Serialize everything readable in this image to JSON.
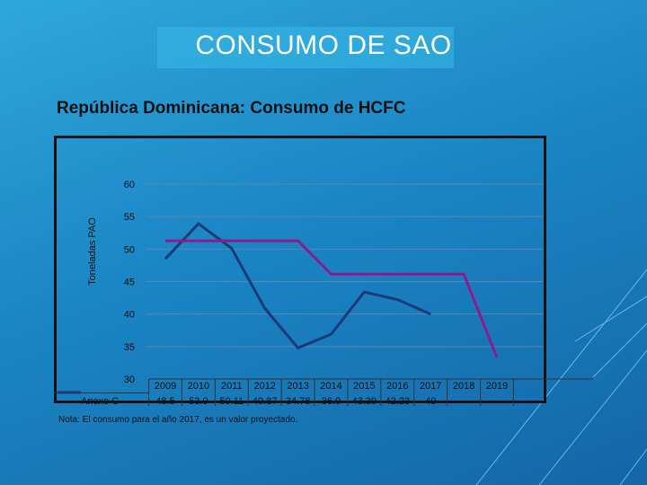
{
  "slide": {
    "title": "CONSUMO DE SAO"
  },
  "note": "Nota: El consumo para el año 2017, es un valor proyectado.",
  "colors": {
    "series": "#1a3a7a",
    "baseline": "#8e1a8e",
    "background": "#1f8fcd"
  },
  "chart_data": {
    "type": "line",
    "title": "República Dominicana: Consumo de HCFC",
    "ylabel": "Toneladas PAO",
    "xlabel": "",
    "ylim": [
      30,
      60
    ],
    "yticks": [
      30,
      35,
      40,
      45,
      50,
      55,
      60
    ],
    "categories": [
      "2009",
      "2010",
      "2011",
      "2012",
      "2013",
      "2014",
      "2015",
      "2016",
      "2017",
      "2018",
      "2019"
    ],
    "grid": true,
    "series": [
      {
        "name": "Anexo C",
        "values": [
          48.5,
          53.9,
          50.11,
          40.87,
          34.78,
          36.9,
          43.39,
          42.23,
          40,
          null,
          null
        ],
        "labels": [
          "48.5",
          "53.9",
          "50.11",
          "40.87",
          "34.78",
          "36.9",
          "43.39",
          "42.23",
          "40",
          "",
          ""
        ]
      },
      {
        "values": [
          51.28,
          51.28,
          51.28,
          51.28,
          51.28,
          46.15,
          46.15,
          46.15,
          46.15,
          46.15,
          33.33
        ]
      }
    ]
  }
}
